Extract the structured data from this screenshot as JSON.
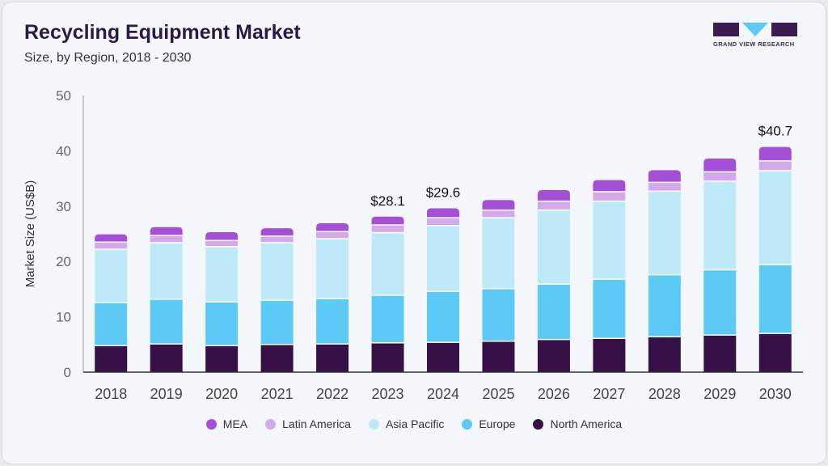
{
  "header": {
    "title": "Recycling Equipment Market",
    "subtitle": "Size, by Region, 2018 - 2030",
    "logo_text": "GRAND VIEW RESEARCH"
  },
  "chart_data": {
    "type": "bar",
    "stacked": true,
    "title": "Recycling Equipment Market",
    "subtitle": "Size, by Region, 2018 - 2030",
    "xlabel": "",
    "ylabel": "Market Size (US$B)",
    "ylim": [
      0,
      50
    ],
    "yticks": [
      0,
      10,
      20,
      30,
      40,
      50
    ],
    "grid": false,
    "legend_position": "bottom",
    "categories": [
      "2018",
      "2019",
      "2020",
      "2021",
      "2022",
      "2023",
      "2024",
      "2025",
      "2026",
      "2027",
      "2028",
      "2029",
      "2030"
    ],
    "series": [
      {
        "name": "North America",
        "color": "#371047",
        "values": [
          4.8,
          5.1,
          4.8,
          5.0,
          5.1,
          5.3,
          5.4,
          5.6,
          5.9,
          6.1,
          6.4,
          6.7,
          7.0
        ]
      },
      {
        "name": "Europe",
        "color": "#5ccaf4",
        "values": [
          7.8,
          8.1,
          7.9,
          8.0,
          8.2,
          8.6,
          9.2,
          9.5,
          10.0,
          10.7,
          11.2,
          11.8,
          12.4
        ]
      },
      {
        "name": "Asia Pacific",
        "color": "#bde9f8",
        "values": [
          9.6,
          10.2,
          10.0,
          10.4,
          10.8,
          11.3,
          11.9,
          12.8,
          13.4,
          14.1,
          15.1,
          16.0,
          17.0
        ]
      },
      {
        "name": "Latin America",
        "color": "#d3a9ea",
        "values": [
          1.3,
          1.3,
          1.1,
          1.2,
          1.3,
          1.4,
          1.4,
          1.4,
          1.6,
          1.7,
          1.6,
          1.7,
          1.8
        ]
      },
      {
        "name": "MEA",
        "color": "#a450d6",
        "values": [
          1.4,
          1.5,
          1.5,
          1.4,
          1.5,
          1.5,
          1.7,
          1.8,
          2.0,
          2.1,
          2.2,
          2.4,
          2.5
        ]
      }
    ],
    "annotations": [
      {
        "category": "2023",
        "label": "$28.1",
        "value": 28.1
      },
      {
        "category": "2024",
        "label": "$29.6",
        "value": 29.6
      },
      {
        "category": "2030",
        "label": "$40.7",
        "value": 40.7
      }
    ],
    "legend_order": [
      "MEA",
      "Latin America",
      "Asia Pacific",
      "Europe",
      "North America"
    ]
  }
}
